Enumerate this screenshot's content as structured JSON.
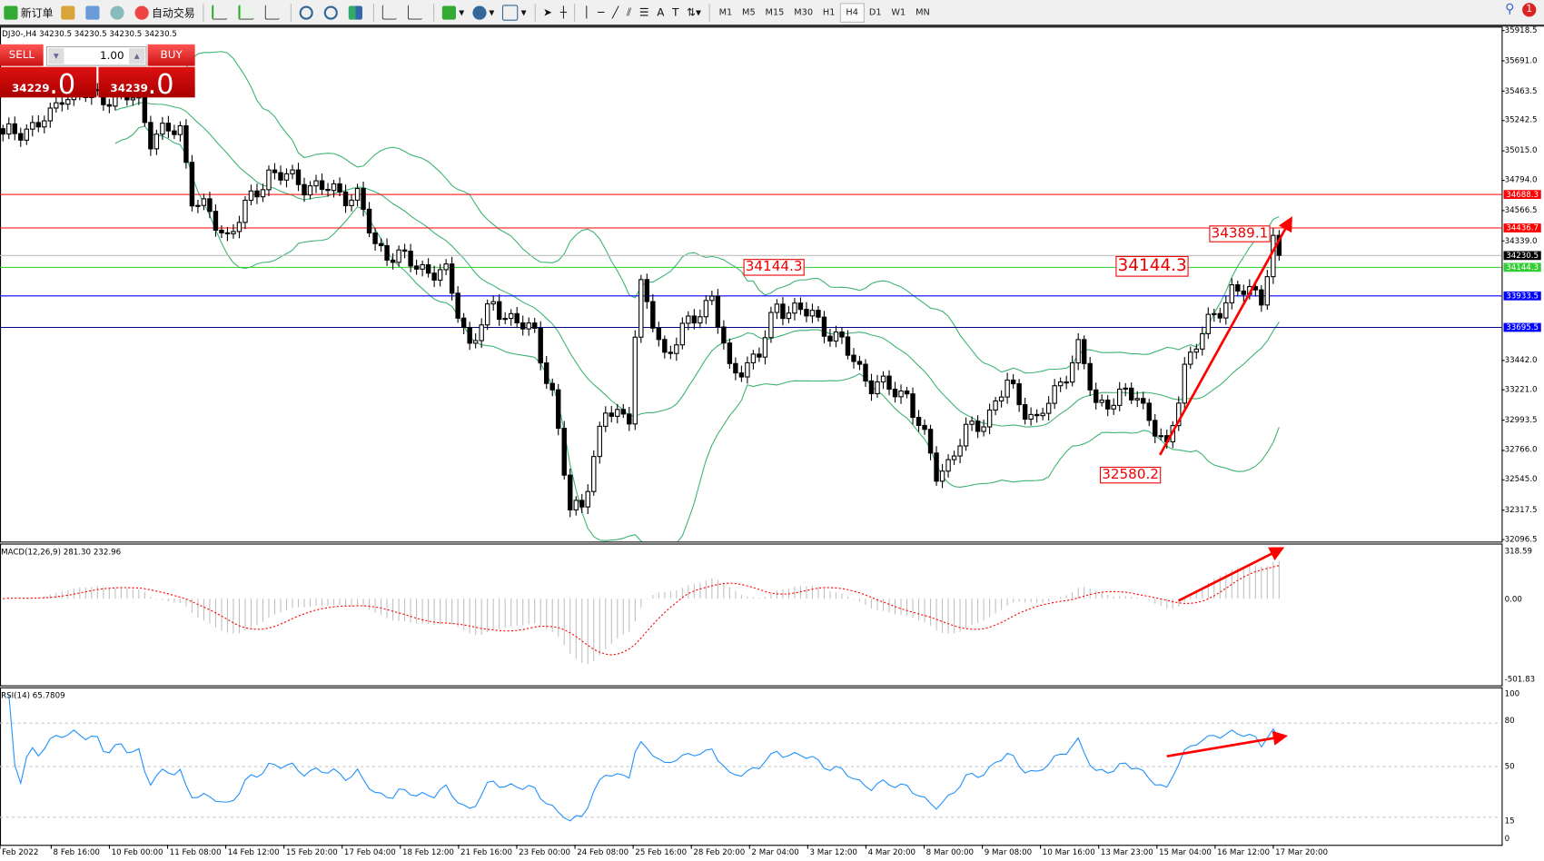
{
  "toolbar": {
    "new_order": "新订单",
    "auto_trading": "自动交易",
    "icons": [
      "search-icon",
      "new-order-icon",
      "gold-icon",
      "market-watch-icon",
      "signals-icon",
      "auto-trading-icon",
      "bar-chart-icon",
      "candle-chart-icon",
      "line-chart-icon",
      "zoom-in-icon",
      "zoom-out-icon",
      "tile-windows-icon",
      "chart-shift-icon",
      "autoscroll-icon",
      "indicators-icon",
      "periods-icon",
      "templates-icon",
      "cursor-icon",
      "crosshair-icon",
      "vertical-line-icon",
      "horizontal-line-icon",
      "trendline-icon",
      "equidistant-channel-icon",
      "fibonacci-icon",
      "text-icon",
      "text-label-icon",
      "arrows-icon"
    ],
    "timeframes": [
      "M1",
      "M5",
      "M15",
      "M30",
      "H1",
      "H4",
      "D1",
      "W1",
      "MN"
    ],
    "active_timeframe": "H4",
    "notification_count": "1"
  },
  "chart": {
    "symbol_info": "DJ30-,H4  34230.5 34230.5 34230.5 34230.5",
    "trade_panel": {
      "sell": "SELL",
      "buy": "BUY",
      "volume": "1.00",
      "sell_price_main": "34229",
      "sell_price_frac": ".0",
      "buy_price_main": "34239",
      "buy_price_frac": ".0"
    },
    "price_axis": [
      "35918.5",
      "35691.0",
      "35463.5",
      "35242.5",
      "35015.0",
      "34794.0",
      "34566.5",
      "34339.0",
      "33442.0",
      "33221.0",
      "32993.5",
      "32766.0",
      "32545.0",
      "32317.5",
      "32096.5"
    ],
    "levels": [
      {
        "price": "34688.3",
        "color": "#ff0000"
      },
      {
        "price": "34436.7",
        "color": "#ff0000"
      },
      {
        "price": "34230.5",
        "color": "#000000",
        "line": "#c0c0c0"
      },
      {
        "price": "34144.3",
        "color": "#32cd32"
      },
      {
        "price": "33933.5",
        "color": "#0000ff"
      },
      {
        "price": "33695.5",
        "color": "#0000ff",
        "line": "#000080"
      }
    ],
    "annotations": [
      "34144.3",
      "34144.3",
      "34389.1",
      "32580.2"
    ],
    "colors": {
      "bull": "#ffffff",
      "bear": "#000000",
      "bands": "#3cb371",
      "arrow": "#ff0000",
      "macd_signal": "#ff0000",
      "macd_hist": "#c0c0c0",
      "rsi": "#1e90ff"
    }
  },
  "macd": {
    "label": "MACD(12,26,9) 281.30 232.96",
    "axis": [
      "318.59",
      "0.00",
      "-501.83"
    ]
  },
  "rsi": {
    "label": "RSI(14) 65.7809",
    "axis": [
      "100",
      "80",
      "50",
      "15",
      "0"
    ]
  },
  "time_axis": [
    "Feb 2022",
    "8 Feb 16:00",
    "10 Feb 00:00",
    "11 Feb 08:00",
    "14 Feb 12:00",
    "15 Feb 20:00",
    "17 Feb 04:00",
    "18 Feb 12:00",
    "21 Feb 16:00",
    "23 Feb 00:00",
    "24 Feb 08:00",
    "25 Feb 16:00",
    "28 Feb 20:00",
    "2 Mar 04:00",
    "3 Mar 12:00",
    "4 Mar 20:00",
    "8 Mar 00:00",
    "9 Mar 08:00",
    "10 Mar 16:00",
    "13 Mar 23:00",
    "15 Mar 04:00",
    "16 Mar 12:00",
    "17 Mar 20:00"
  ],
  "chart_data": {
    "type": "candlestick",
    "symbol": "DJ30-",
    "timeframe": "H4",
    "ylim": [
      32096.5,
      35918.5
    ],
    "close_anchors_by_bar": [
      [
        0,
        35112
      ],
      [
        8,
        35260
      ],
      [
        10,
        35445
      ],
      [
        23,
        35408
      ],
      [
        25,
        35112
      ],
      [
        30,
        35187
      ],
      [
        32,
        34669
      ],
      [
        38,
        34373
      ],
      [
        45,
        34854
      ],
      [
        53,
        34743
      ],
      [
        60,
        34669
      ],
      [
        63,
        34300
      ],
      [
        70,
        34152
      ],
      [
        75,
        34078
      ],
      [
        79,
        33560
      ],
      [
        83,
        33856
      ],
      [
        90,
        33634
      ],
      [
        93,
        33190
      ],
      [
        96,
        32303
      ],
      [
        98,
        32377
      ],
      [
        102,
        33043
      ],
      [
        106,
        33043
      ],
      [
        107,
        33634
      ],
      [
        108,
        33967
      ],
      [
        112,
        33486
      ],
      [
        120,
        33930
      ],
      [
        123,
        33338
      ],
      [
        128,
        33486
      ],
      [
        131,
        33856
      ],
      [
        137,
        33782
      ],
      [
        142,
        33560
      ],
      [
        147,
        33264
      ],
      [
        153,
        33190
      ],
      [
        158,
        32600
      ],
      [
        160,
        32673
      ],
      [
        163,
        32895
      ],
      [
        167,
        33043
      ],
      [
        170,
        33264
      ],
      [
        175,
        32969
      ],
      [
        182,
        33523
      ],
      [
        185,
        33117
      ],
      [
        192,
        33190
      ],
      [
        197,
        32747
      ],
      [
        200,
        33412
      ],
      [
        205,
        33782
      ],
      [
        208,
        33967
      ],
      [
        213,
        33930
      ],
      [
        215,
        34336
      ],
      [
        216,
        34230.5
      ]
    ]
  }
}
